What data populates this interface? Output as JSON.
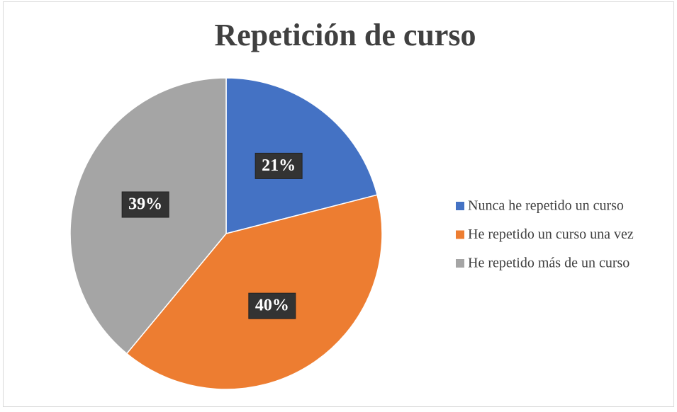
{
  "chart_data": {
    "type": "pie",
    "title": "Repetición de curso",
    "categories": [
      "Nunca he repetido un curso",
      "He repetido un curso una vez",
      "He repetido más de un curso"
    ],
    "values": [
      21,
      40,
      39
    ],
    "value_labels": [
      "21%",
      "40%",
      "39%"
    ],
    "colors": [
      "#4472c4",
      "#ed7d31",
      "#a5a5a5"
    ],
    "legend": "right"
  }
}
